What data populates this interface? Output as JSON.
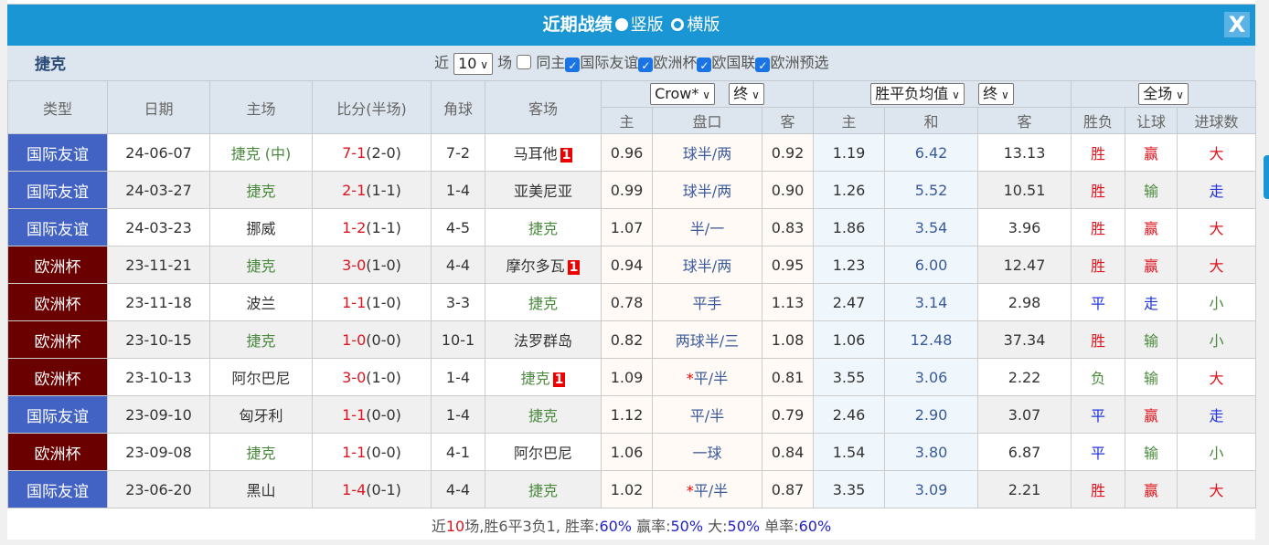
{
  "header": {
    "title": "近期战绩",
    "view_vertical": "竖版",
    "view_horizontal": "横版",
    "close_label": "X"
  },
  "filter": {
    "team": "捷克",
    "recent_prefix": "近",
    "recent_count": "10",
    "recent_suffix": "场",
    "same_home": "同主",
    "leagues": [
      {
        "label": "国际友谊",
        "checked": true
      },
      {
        "label": "欧洲杯",
        "checked": true
      },
      {
        "label": "欧国联",
        "checked": true
      },
      {
        "label": "欧洲预选",
        "checked": true
      }
    ]
  },
  "columns": {
    "type": "类型",
    "date": "日期",
    "home": "主场",
    "score": "比分(半场)",
    "corner": "角球",
    "away": "客场",
    "handicap_company": "Crow*",
    "handicap_stage": "终",
    "europe_company": "胜平负均值",
    "europe_stage": "终",
    "period": "全场",
    "ah_home": "主",
    "ah_line": "盘口",
    "ah_away": "客",
    "eu_home": "主",
    "eu_draw": "和",
    "eu_away": "客",
    "wdl": "胜负",
    "ah_result": "让球",
    "goals": "进球数"
  },
  "colors": {
    "friendly": "#4263c4",
    "euro": "#6a0000",
    "header": "#1a96d4"
  },
  "rows": [
    {
      "type": "国际友谊",
      "kind": "friendly",
      "date": "24-06-07",
      "home": "捷克 (中)",
      "home_is_team": true,
      "ft_home": "7",
      "ft_away": "1",
      "ht": "(2-0)",
      "corner": "7-2",
      "away": "马耳他",
      "away_is_team": false,
      "away_card": "1",
      "ah_h": "0.96",
      "line": "球半/两",
      "line_star": false,
      "ah_a": "0.92",
      "eu_h": "1.19",
      "eu_d": "6.42",
      "eu_a": "13.13",
      "wdl": "胜",
      "ah": "赢",
      "goals": "大"
    },
    {
      "type": "国际友谊",
      "kind": "friendly",
      "date": "24-03-27",
      "home": "捷克",
      "home_is_team": true,
      "ft_home": "2",
      "ft_away": "1",
      "ht": "(1-1)",
      "corner": "1-4",
      "away": "亚美尼亚",
      "away_is_team": false,
      "away_card": "",
      "ah_h": "0.99",
      "line": "球半/两",
      "line_star": false,
      "ah_a": "0.90",
      "eu_h": "1.26",
      "eu_d": "5.52",
      "eu_a": "10.51",
      "wdl": "胜",
      "ah": "输",
      "goals": "走"
    },
    {
      "type": "国际友谊",
      "kind": "friendly",
      "date": "24-03-23",
      "home": "挪威",
      "home_is_team": false,
      "ft_home": "1",
      "ft_away": "2",
      "ht": "(1-1)",
      "corner": "4-5",
      "away": "捷克",
      "away_is_team": true,
      "away_card": "",
      "ah_h": "1.07",
      "line": "半/一",
      "line_star": false,
      "ah_a": "0.83",
      "eu_h": "1.86",
      "eu_d": "3.54",
      "eu_a": "3.96",
      "wdl": "胜",
      "ah": "赢",
      "goals": "大"
    },
    {
      "type": "欧洲杯",
      "kind": "euro",
      "date": "23-11-21",
      "home": "捷克",
      "home_is_team": true,
      "ft_home": "3",
      "ft_away": "0",
      "ht": "(1-0)",
      "corner": "4-4",
      "away": "摩尔多瓦",
      "away_is_team": false,
      "away_card": "1",
      "ah_h": "0.94",
      "line": "球半/两",
      "line_star": false,
      "ah_a": "0.95",
      "eu_h": "1.23",
      "eu_d": "6.00",
      "eu_a": "12.47",
      "wdl": "胜",
      "ah": "赢",
      "goals": "大"
    },
    {
      "type": "欧洲杯",
      "kind": "euro",
      "date": "23-11-18",
      "home": "波兰",
      "home_is_team": false,
      "ft_home": "1",
      "ft_away": "1",
      "ht": "(1-0)",
      "corner": "3-3",
      "away": "捷克",
      "away_is_team": true,
      "away_card": "",
      "ah_h": "0.78",
      "line": "平手",
      "line_star": false,
      "ah_a": "1.13",
      "eu_h": "2.47",
      "eu_d": "3.14",
      "eu_a": "2.98",
      "wdl": "平",
      "ah": "走",
      "goals": "小"
    },
    {
      "type": "欧洲杯",
      "kind": "euro",
      "date": "23-10-15",
      "home": "捷克",
      "home_is_team": true,
      "ft_home": "1",
      "ft_away": "0",
      "ht": "(0-0)",
      "corner": "10-1",
      "away": "法罗群岛",
      "away_is_team": false,
      "away_card": "",
      "ah_h": "0.82",
      "line": "两球半/三",
      "line_star": false,
      "ah_a": "1.08",
      "eu_h": "1.06",
      "eu_d": "12.48",
      "eu_a": "37.34",
      "wdl": "胜",
      "ah": "输",
      "goals": "小"
    },
    {
      "type": "欧洲杯",
      "kind": "euro",
      "date": "23-10-13",
      "home": "阿尔巴尼",
      "home_is_team": false,
      "ft_home": "3",
      "ft_away": "0",
      "ht": "(1-0)",
      "corner": "1-4",
      "away": "捷克",
      "away_is_team": true,
      "away_card": "1",
      "ah_h": "1.09",
      "line": "平/半",
      "line_star": true,
      "ah_a": "0.81",
      "eu_h": "3.55",
      "eu_d": "3.06",
      "eu_a": "2.22",
      "wdl": "负",
      "ah": "输",
      "goals": "大"
    },
    {
      "type": "国际友谊",
      "kind": "friendly",
      "date": "23-09-10",
      "home": "匈牙利",
      "home_is_team": false,
      "ft_home": "1",
      "ft_away": "1",
      "ht": "(0-0)",
      "corner": "1-4",
      "away": "捷克",
      "away_is_team": true,
      "away_card": "",
      "ah_h": "1.12",
      "line": "平/半",
      "line_star": false,
      "ah_a": "0.79",
      "eu_h": "2.46",
      "eu_d": "2.90",
      "eu_a": "3.07",
      "wdl": "平",
      "ah": "赢",
      "goals": "走"
    },
    {
      "type": "欧洲杯",
      "kind": "euro",
      "date": "23-09-08",
      "home": "捷克",
      "home_is_team": true,
      "ft_home": "1",
      "ft_away": "1",
      "ht": "(0-0)",
      "corner": "4-1",
      "away": "阿尔巴尼",
      "away_is_team": false,
      "away_card": "",
      "ah_h": "1.06",
      "line": "一球",
      "line_star": false,
      "ah_a": "0.84",
      "eu_h": "1.54",
      "eu_d": "3.80",
      "eu_a": "6.87",
      "wdl": "平",
      "ah": "输",
      "goals": "小"
    },
    {
      "type": "国际友谊",
      "kind": "friendly",
      "date": "23-06-20",
      "home": "黑山",
      "home_is_team": false,
      "ft_home": "1",
      "ft_away": "4",
      "ht": "(0-1)",
      "corner": "4-4",
      "away": "捷克",
      "away_is_team": true,
      "away_card": "",
      "ah_h": "1.02",
      "line": "平/半",
      "line_star": true,
      "ah_a": "0.87",
      "eu_h": "3.35",
      "eu_d": "3.09",
      "eu_a": "2.21",
      "wdl": "胜",
      "ah": "赢",
      "goals": "大"
    }
  ],
  "footer": {
    "p1": "近",
    "count": "10",
    "p2": "场,胜6平3负1, 胜率:",
    "win_rate": "60%",
    "p3": " 赢率:",
    "ah_rate": "50%",
    "p4": " 大:",
    "over_rate": "50%",
    "p5": " 单率:",
    "odd_rate": "60%"
  }
}
